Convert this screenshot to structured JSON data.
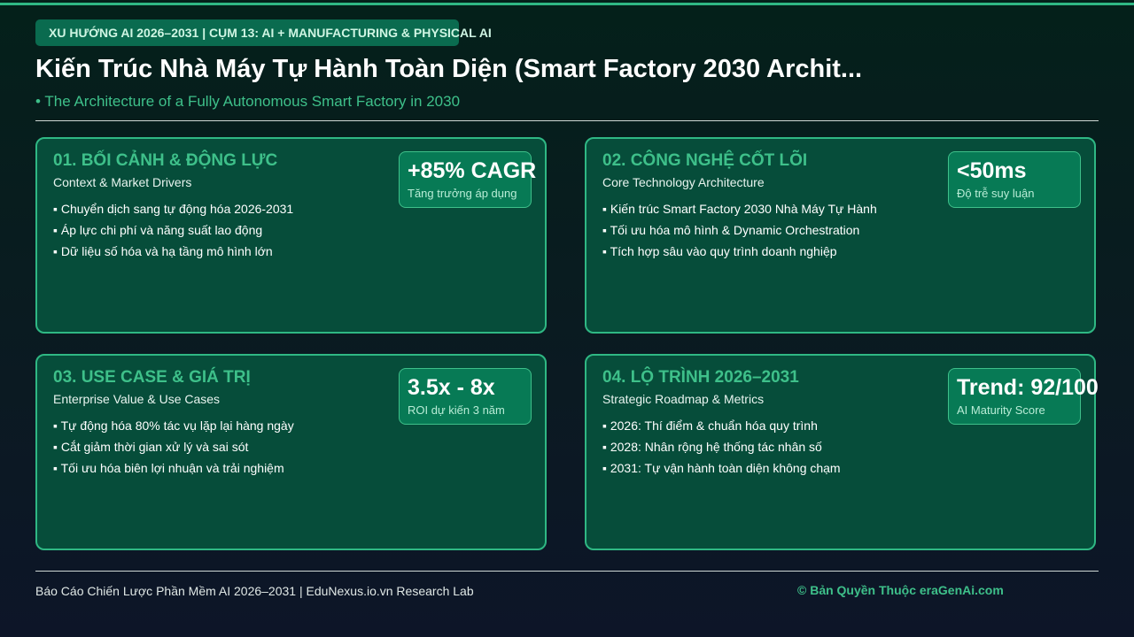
{
  "header": {
    "tag": "XU HƯỚNG AI 2026–2031 | CỤM 13: AI + MANUFACTURING & PHYSICAL AI",
    "title": "Kiến Trúc Nhà Máy Tự Hành Toàn Diện (Smart Factory 2030 Archit...",
    "subtitle": "• The Architecture of a Fully Autonomous Smart Factory in 2030"
  },
  "cards": [
    {
      "heading": "01. BỐI CẢNH & ĐỘNG LỰC",
      "subheading": "Context & Market Drivers",
      "metric": {
        "value": "+85% CAGR",
        "label": "Tăng trưởng áp dụng"
      },
      "bullets": [
        "▪ Chuyển dịch sang tự động hóa 2026-2031",
        "▪ Áp lực chi phí và năng suất lao động",
        "▪ Dữ liệu số hóa và hạ tầng mô hình lớn"
      ]
    },
    {
      "heading": "02. CÔNG NGHỆ CỐT LÕI",
      "subheading": "Core Technology Architecture",
      "metric": {
        "value": "<50ms",
        "label": "Độ trễ suy luận"
      },
      "bullets": [
        "▪ Kiến trúc Smart Factory 2030 Nhà Máy Tự Hành",
        "▪ Tối ưu hóa mô hình & Dynamic Orchestration",
        "▪ Tích hợp sâu vào quy trình doanh nghiệp"
      ]
    },
    {
      "heading": "03. USE CASE & GIÁ TRỊ",
      "subheading": "Enterprise Value & Use Cases",
      "metric": {
        "value": "3.5x - 8x",
        "label": "ROI dự kiến 3 năm"
      },
      "bullets": [
        "▪ Tự động hóa 80% tác vụ lặp lại hàng ngày",
        "▪ Cắt giảm thời gian xử lý và sai sót",
        "▪ Tối ưu hóa biên lợi nhuận và trải nghiệm"
      ]
    },
    {
      "heading": "04. LỘ TRÌNH 2026–2031",
      "subheading": "Strategic Roadmap & Metrics",
      "metric": {
        "value": "Trend: 92/100",
        "label": "AI Maturity Score"
      },
      "bullets": [
        "▪ 2026: Thí điểm & chuẩn hóa quy trình",
        "▪ 2028: Nhân rộng hệ thống tác nhân số",
        "▪ 2031: Tự vận hành toàn diện không chạm"
      ]
    }
  ],
  "footer": {
    "left": "Báo Cáo Chiến Lược Phần Mềm AI 2026–2031 | EduNexus.io.vn Research Lab",
    "right": "© Bản Quyền Thuộc eraGenAi.com"
  }
}
